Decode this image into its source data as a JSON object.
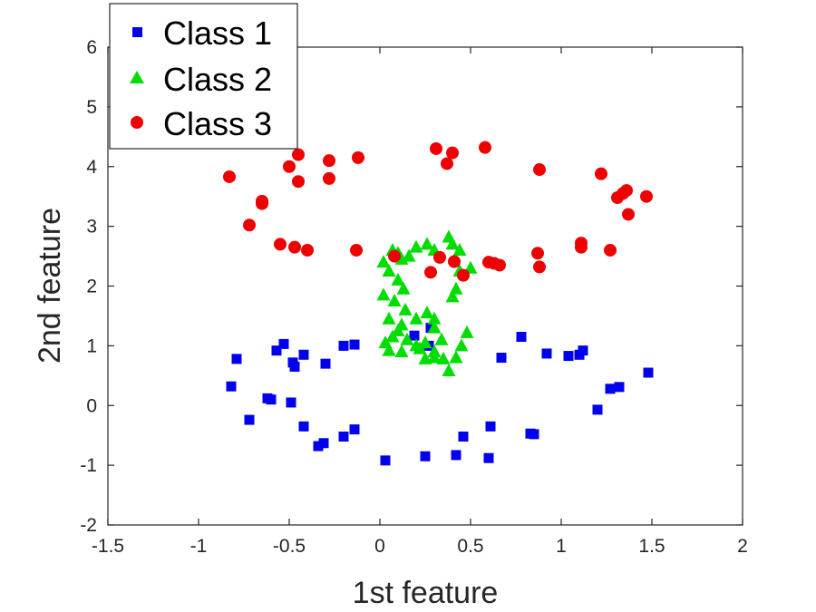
{
  "chart_data": {
    "type": "scatter",
    "xlabel": "1st feature",
    "ylabel": "2nd feature",
    "xlim": [
      -1.5,
      2
    ],
    "ylim": [
      -2,
      6
    ],
    "xticks": [
      "-1.5",
      "-1",
      "-0.5",
      "0",
      "0.5",
      "1",
      "1.5",
      "2"
    ],
    "yticks": [
      "-2",
      "-1",
      "0",
      "1",
      "2",
      "3",
      "4",
      "5",
      "6"
    ],
    "grid": false,
    "legend_position": "top-left",
    "series": [
      {
        "name": "Class 1",
        "marker": "square",
        "color": "#0000ee",
        "points": [
          [
            -0.82,
            0.32
          ],
          [
            -0.79,
            0.78
          ],
          [
            -0.72,
            -0.24
          ],
          [
            -0.62,
            0.12
          ],
          [
            -0.6,
            0.1
          ],
          [
            -0.57,
            0.92
          ],
          [
            -0.53,
            1.03
          ],
          [
            -0.49,
            0.05
          ],
          [
            -0.48,
            0.72
          ],
          [
            -0.47,
            0.65
          ],
          [
            -0.42,
            0.85
          ],
          [
            -0.42,
            -0.35
          ],
          [
            -0.34,
            -0.68
          ],
          [
            -0.31,
            -0.63
          ],
          [
            -0.3,
            0.7
          ],
          [
            -0.2,
            1.0
          ],
          [
            -0.2,
            -0.52
          ],
          [
            -0.14,
            1.02
          ],
          [
            -0.14,
            -0.4
          ],
          [
            0.03,
            -0.92
          ],
          [
            0.25,
            -0.85
          ],
          [
            0.28,
            1.3
          ],
          [
            0.42,
            -0.83
          ],
          [
            0.46,
            -0.52
          ],
          [
            0.6,
            -0.88
          ],
          [
            0.61,
            -0.35
          ],
          [
            0.67,
            0.8
          ],
          [
            0.78,
            1.15
          ],
          [
            0.83,
            -0.47
          ],
          [
            0.85,
            -0.48
          ],
          [
            0.92,
            0.87
          ],
          [
            1.04,
            0.83
          ],
          [
            1.1,
            0.85
          ],
          [
            1.12,
            0.92
          ],
          [
            1.2,
            -0.07
          ],
          [
            1.27,
            0.28
          ],
          [
            1.32,
            0.31
          ],
          [
            1.48,
            0.55
          ],
          [
            0.19,
            1.17
          ],
          [
            0.27,
            1.0
          ]
        ]
      },
      {
        "name": "Class 2",
        "marker": "triangle",
        "color": "#00dd00",
        "points": [
          [
            0.07,
            2.6
          ],
          [
            0.1,
            2.55
          ],
          [
            0.12,
            2.45
          ],
          [
            0.16,
            2.5
          ],
          [
            0.2,
            2.65
          ],
          [
            0.26,
            2.7
          ],
          [
            0.3,
            2.6
          ],
          [
            0.38,
            2.82
          ],
          [
            0.4,
            2.7
          ],
          [
            0.44,
            2.6
          ],
          [
            0.5,
            2.3
          ],
          [
            0.02,
            2.4
          ],
          [
            0.05,
            2.25
          ],
          [
            0.1,
            2.1
          ],
          [
            0.13,
            1.95
          ],
          [
            0.02,
            1.85
          ],
          [
            0.08,
            1.75
          ],
          [
            0.14,
            1.6
          ],
          [
            0.05,
            1.45
          ],
          [
            0.12,
            1.35
          ],
          [
            0.2,
            1.45
          ],
          [
            0.26,
            1.55
          ],
          [
            0.3,
            1.45
          ],
          [
            0.4,
            1.82
          ],
          [
            0.42,
            1.95
          ],
          [
            0.44,
            2.25
          ],
          [
            0.03,
            1.05
          ],
          [
            0.07,
            1.15
          ],
          [
            0.1,
            1.25
          ],
          [
            0.15,
            1.1
          ],
          [
            0.2,
            1.0
          ],
          [
            0.25,
            1.05
          ],
          [
            0.3,
            0.9
          ],
          [
            0.34,
            1.1
          ],
          [
            0.05,
            0.92
          ],
          [
            0.12,
            0.9
          ],
          [
            0.25,
            0.78
          ],
          [
            0.3,
            0.8
          ],
          [
            0.35,
            0.78
          ],
          [
            0.42,
            0.8
          ],
          [
            0.38,
            0.58
          ],
          [
            0.48,
            1.22
          ],
          [
            0.3,
            1.3
          ],
          [
            0.45,
            1.0
          ],
          [
            0.22,
            0.95
          ]
        ]
      },
      {
        "name": "Class 3",
        "marker": "circle",
        "color": "#ee0000",
        "points": [
          [
            -0.83,
            3.83
          ],
          [
            -0.65,
            3.42
          ],
          [
            -0.65,
            3.38
          ],
          [
            -0.72,
            3.02
          ],
          [
            -0.55,
            2.7
          ],
          [
            -0.47,
            2.65
          ],
          [
            -0.4,
            2.6
          ],
          [
            -0.5,
            4.0
          ],
          [
            -0.45,
            4.2
          ],
          [
            -0.45,
            3.75
          ],
          [
            -0.28,
            4.1
          ],
          [
            -0.28,
            3.8
          ],
          [
            -0.13,
            2.6
          ],
          [
            -0.12,
            4.15
          ],
          [
            0.08,
            2.5
          ],
          [
            0.28,
            2.23
          ],
          [
            0.31,
            4.3
          ],
          [
            0.33,
            2.48
          ],
          [
            0.37,
            4.05
          ],
          [
            0.4,
            4.23
          ],
          [
            0.41,
            2.41
          ],
          [
            0.46,
            2.18
          ],
          [
            0.58,
            4.32
          ],
          [
            0.6,
            2.4
          ],
          [
            0.63,
            2.38
          ],
          [
            0.66,
            2.35
          ],
          [
            0.87,
            2.55
          ],
          [
            0.88,
            2.32
          ],
          [
            0.88,
            3.95
          ],
          [
            1.11,
            2.72
          ],
          [
            1.11,
            2.65
          ],
          [
            1.22,
            3.88
          ],
          [
            1.27,
            2.6
          ],
          [
            1.31,
            3.48
          ],
          [
            1.34,
            3.55
          ],
          [
            1.36,
            3.6
          ],
          [
            1.37,
            3.2
          ],
          [
            1.47,
            3.5
          ]
        ]
      }
    ]
  }
}
